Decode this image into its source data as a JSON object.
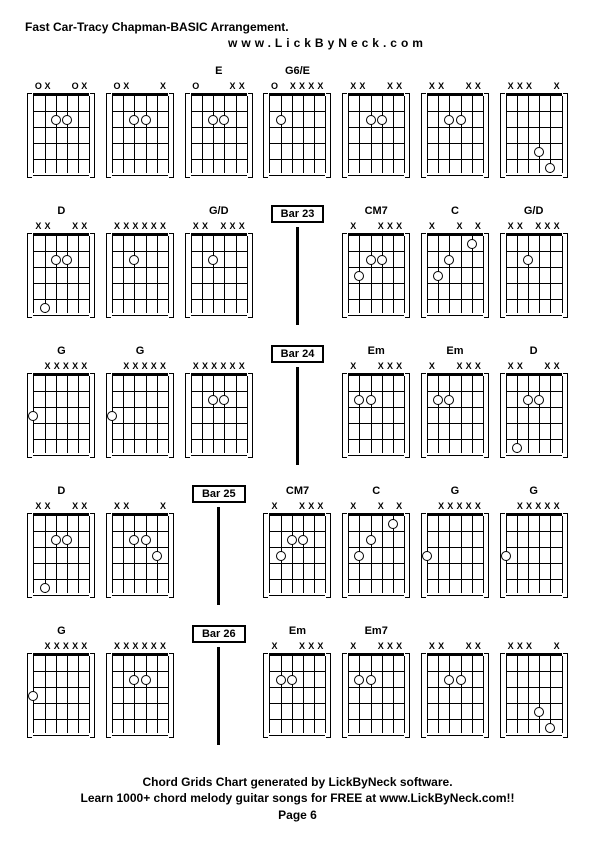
{
  "title": "Fast Car-Tracy Chapman-BASIC Arrangement.",
  "subtitle": "www.LickByNeck.com",
  "footer_line1": "Chord Grids Chart generated by LickByNeck software.",
  "footer_line2": "Learn 1000+ chord melody guitar songs for FREE at www.LickByNeck.com!!",
  "footer_page": "Page 6",
  "layout": {
    "cols": 7,
    "rows": 5,
    "frets": 5,
    "strings": 6,
    "diagram_width": 56,
    "diagram_height": 80,
    "title_fontsize": 12,
    "label_fontsize": 11,
    "footer_fontsize": 12,
    "colors": {
      "fg": "#000000",
      "bg": "#ffffff"
    }
  },
  "cells": [
    {
      "type": "chord",
      "label": "",
      "top": [
        "O",
        "X",
        "",
        "",
        "O",
        "X"
      ],
      "dots": [
        {
          "s": 2,
          "f": 2
        },
        {
          "s": 3,
          "f": 2
        }
      ]
    },
    {
      "type": "chord",
      "label": "",
      "top": [
        "O",
        "X",
        "",
        "",
        "",
        "X"
      ],
      "dots": [
        {
          "s": 2,
          "f": 2
        },
        {
          "s": 3,
          "f": 2
        }
      ]
    },
    {
      "type": "chord",
      "label": "E",
      "top": [
        "O",
        "",
        "",
        "",
        "X",
        "X"
      ],
      "dots": [
        {
          "s": 2,
          "f": 2
        },
        {
          "s": 3,
          "f": 2
        }
      ]
    },
    {
      "type": "chord",
      "label": "G6/E",
      "top": [
        "O",
        "",
        "X",
        "X",
        "X",
        "X"
      ],
      "dots": [
        {
          "s": 1,
          "f": 2
        }
      ]
    },
    {
      "type": "chord",
      "label": "",
      "top": [
        "X",
        "X",
        "",
        "",
        "X",
        "X"
      ],
      "dots": [
        {
          "s": 2,
          "f": 2
        },
        {
          "s": 3,
          "f": 2
        }
      ]
    },
    {
      "type": "chord",
      "label": "",
      "top": [
        "X",
        "X",
        "",
        "",
        "X",
        "X"
      ],
      "dots": [
        {
          "s": 2,
          "f": 2
        },
        {
          "s": 3,
          "f": 2
        }
      ]
    },
    {
      "type": "chord",
      "label": "",
      "top": [
        "X",
        "X",
        "X",
        "",
        "",
        "X"
      ],
      "dots": [
        {
          "s": 3,
          "f": 4
        },
        {
          "s": 4,
          "f": 5
        }
      ]
    },
    {
      "type": "chord",
      "label": "D",
      "top": [
        "X",
        "X",
        "",
        "",
        "X",
        "X"
      ],
      "dots": [
        {
          "s": 2,
          "f": 2
        },
        {
          "s": 3,
          "f": 2
        },
        {
          "s": 1,
          "f": 5
        }
      ]
    },
    {
      "type": "chord",
      "label": "",
      "top": [
        "X",
        "X",
        "X",
        "X",
        "X",
        "X"
      ],
      "dots": [
        {
          "s": 2,
          "f": 2
        }
      ]
    },
    {
      "type": "chord",
      "label": "G/D",
      "top": [
        "X",
        "X",
        "",
        "X",
        "X",
        "X"
      ],
      "dots": [
        {
          "s": 2,
          "f": 2
        }
      ]
    },
    {
      "type": "bar",
      "label": "Bar 23"
    },
    {
      "type": "chord",
      "label": "CM7",
      "top": [
        "X",
        "",
        "",
        "X",
        "X",
        "X"
      ],
      "dots": [
        {
          "s": 1,
          "f": 3
        },
        {
          "s": 2,
          "f": 2
        },
        {
          "s": 3,
          "f": 2
        }
      ]
    },
    {
      "type": "chord",
      "label": "C",
      "top": [
        "X",
        "",
        "",
        "X",
        "",
        "X"
      ],
      "dots": [
        {
          "s": 1,
          "f": 3
        },
        {
          "s": 2,
          "f": 2
        },
        {
          "s": 4,
          "f": 1
        }
      ]
    },
    {
      "type": "chord",
      "label": "G/D",
      "top": [
        "X",
        "X",
        "",
        "X",
        "X",
        "X"
      ],
      "dots": [
        {
          "s": 2,
          "f": 2
        }
      ]
    },
    {
      "type": "chord",
      "label": "G",
      "top": [
        "",
        "X",
        "X",
        "X",
        "X",
        "X"
      ],
      "dots": [
        {
          "s": 0,
          "f": 3
        }
      ]
    },
    {
      "type": "chord",
      "label": "G",
      "top": [
        "",
        "X",
        "X",
        "X",
        "X",
        "X"
      ],
      "dots": [
        {
          "s": 0,
          "f": 3
        }
      ]
    },
    {
      "type": "chord",
      "label": "",
      "top": [
        "X",
        "X",
        "X",
        "X",
        "X",
        "X"
      ],
      "dots": [
        {
          "s": 2,
          "f": 2
        },
        {
          "s": 3,
          "f": 2
        }
      ]
    },
    {
      "type": "bar",
      "label": "Bar 24"
    },
    {
      "type": "chord",
      "label": "Em",
      "top": [
        "X",
        "",
        "",
        "X",
        "X",
        "X"
      ],
      "dots": [
        {
          "s": 1,
          "f": 2
        },
        {
          "s": 2,
          "f": 2
        }
      ]
    },
    {
      "type": "chord",
      "label": "Em",
      "top": [
        "X",
        "",
        "",
        "X",
        "X",
        "X"
      ],
      "dots": [
        {
          "s": 1,
          "f": 2
        },
        {
          "s": 2,
          "f": 2
        }
      ]
    },
    {
      "type": "chord",
      "label": "D",
      "top": [
        "X",
        "X",
        "",
        "",
        "X",
        "X"
      ],
      "dots": [
        {
          "s": 2,
          "f": 2
        },
        {
          "s": 3,
          "f": 2
        },
        {
          "s": 1,
          "f": 5
        }
      ]
    },
    {
      "type": "chord",
      "label": "D",
      "top": [
        "X",
        "X",
        "",
        "",
        "X",
        "X"
      ],
      "dots": [
        {
          "s": 2,
          "f": 2
        },
        {
          "s": 3,
          "f": 2
        },
        {
          "s": 1,
          "f": 5
        }
      ]
    },
    {
      "type": "chord",
      "label": "",
      "top": [
        "X",
        "X",
        "",
        "",
        "",
        "X"
      ],
      "dots": [
        {
          "s": 2,
          "f": 2
        },
        {
          "s": 3,
          "f": 2
        },
        {
          "s": 4,
          "f": 3
        }
      ]
    },
    {
      "type": "bar",
      "label": "Bar 25"
    },
    {
      "type": "chord",
      "label": "CM7",
      "top": [
        "X",
        "",
        "",
        "X",
        "X",
        "X"
      ],
      "dots": [
        {
          "s": 1,
          "f": 3
        },
        {
          "s": 2,
          "f": 2
        },
        {
          "s": 3,
          "f": 2
        }
      ]
    },
    {
      "type": "chord",
      "label": "C",
      "top": [
        "X",
        "",
        "",
        "X",
        "",
        "X"
      ],
      "dots": [
        {
          "s": 1,
          "f": 3
        },
        {
          "s": 2,
          "f": 2
        },
        {
          "s": 4,
          "f": 1
        }
      ]
    },
    {
      "type": "chord",
      "label": "G",
      "top": [
        "",
        "X",
        "X",
        "X",
        "X",
        "X"
      ],
      "dots": [
        {
          "s": 0,
          "f": 3
        }
      ]
    },
    {
      "type": "chord",
      "label": "G",
      "top": [
        "",
        "X",
        "X",
        "X",
        "X",
        "X"
      ],
      "dots": [
        {
          "s": 0,
          "f": 3
        }
      ]
    },
    {
      "type": "chord",
      "label": "G",
      "top": [
        "",
        "X",
        "X",
        "X",
        "X",
        "X"
      ],
      "dots": [
        {
          "s": 0,
          "f": 3
        }
      ]
    },
    {
      "type": "chord",
      "label": "",
      "top": [
        "X",
        "X",
        "X",
        "X",
        "X",
        "X"
      ],
      "dots": [
        {
          "s": 2,
          "f": 2
        },
        {
          "s": 3,
          "f": 2
        }
      ]
    },
    {
      "type": "bar",
      "label": "Bar 26"
    },
    {
      "type": "chord",
      "label": "Em",
      "top": [
        "X",
        "",
        "",
        "X",
        "X",
        "X"
      ],
      "dots": [
        {
          "s": 1,
          "f": 2
        },
        {
          "s": 2,
          "f": 2
        }
      ]
    },
    {
      "type": "chord",
      "label": "Em7",
      "top": [
        "X",
        "",
        "",
        "X",
        "X",
        "X"
      ],
      "dots": [
        {
          "s": 1,
          "f": 2
        },
        {
          "s": 2,
          "f": 2
        }
      ]
    },
    {
      "type": "chord",
      "label": "",
      "top": [
        "X",
        "X",
        "",
        "",
        "X",
        "X"
      ],
      "dots": [
        {
          "s": 2,
          "f": 2
        },
        {
          "s": 3,
          "f": 2
        }
      ]
    },
    {
      "type": "chord",
      "label": "",
      "top": [
        "X",
        "X",
        "X",
        "",
        "",
        "X"
      ],
      "dots": [
        {
          "s": 3,
          "f": 4
        },
        {
          "s": 4,
          "f": 5
        }
      ]
    }
  ]
}
